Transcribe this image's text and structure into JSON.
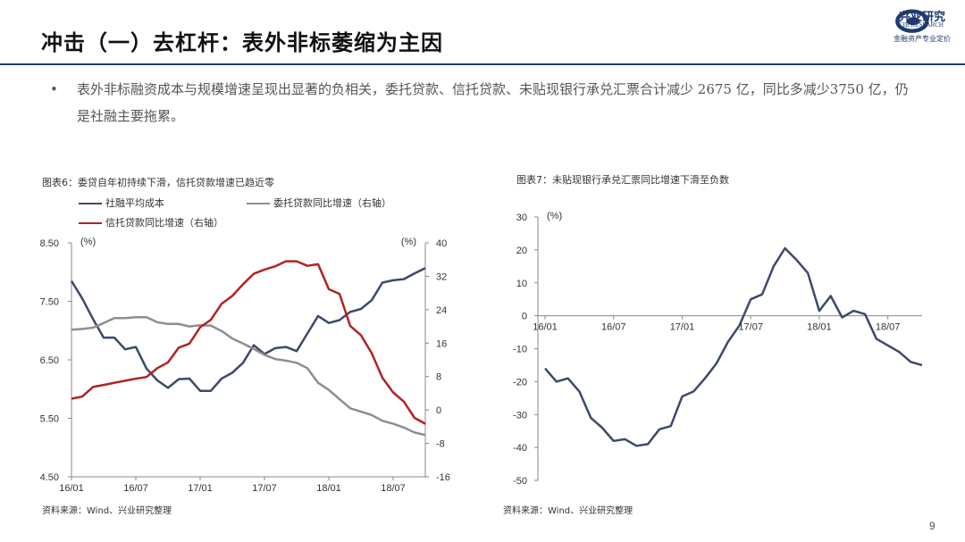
{
  "header": {
    "title": "冲击（一）去杠杆：表外非标萎缩为主因",
    "logo_text": "兴业研究",
    "logo_sub": "CIB RESEARCH",
    "logo_tag": "金融资产专业定价"
  },
  "bullet": {
    "dot": "•",
    "text": "表外非标融资成本与规模增速呈现出显著的负相关，委托贷款、信托贷款、未贴现银行承兑汇票合计减少 2675 亿，同比多减少3750 亿，仍是社融主要拖累。"
  },
  "page_number": "9",
  "colors": {
    "navy": "#3c4a6b",
    "gray": "#8e8e8e",
    "red": "#b22222",
    "rule": "#1f3a6e"
  },
  "chart_data": [
    {
      "type": "line",
      "title": "图表6：委贷自年初持续下滑，信托贷款增速已趋近零",
      "source": "资料来源：Wind、兴业研究整理",
      "x_ticks": [
        "16/01",
        "16/07",
        "17/01",
        "17/07",
        "18/01",
        "18/07"
      ],
      "left_axis": {
        "unit": "(%)",
        "ylim": [
          4.5,
          8.5
        ],
        "ticks": [
          "8.50",
          "7.50",
          "6.50",
          "5.50",
          "4.50"
        ]
      },
      "right_axis": {
        "unit": "(%)",
        "ylim": [
          -16,
          40
        ],
        "ticks": [
          "40",
          "32",
          "24",
          "16",
          "8",
          "0",
          "-8",
          "-16"
        ]
      },
      "series": [
        {
          "name": "社融平均成本",
          "axis": "left",
          "color": "#3c4a6b",
          "values": [
            7.85,
            7.55,
            7.2,
            6.88,
            6.88,
            6.68,
            6.72,
            6.35,
            6.15,
            6.02,
            6.17,
            6.18,
            5.97,
            5.97,
            6.18,
            6.28,
            6.45,
            6.75,
            6.6,
            6.7,
            6.72,
            6.65,
            6.95,
            7.25,
            7.13,
            7.18,
            7.32,
            7.37,
            7.52,
            7.82,
            7.86,
            7.88,
            7.98,
            8.07
          ]
        },
        {
          "name": "委托贷款同比增速（右轴）",
          "axis": "right",
          "color": "#8e8e8e",
          "values": [
            19.2,
            19.4,
            19.7,
            20.8,
            22.0,
            22.0,
            22.2,
            22.2,
            21.0,
            20.6,
            20.6,
            20.0,
            20.3,
            20.2,
            18.9,
            17.1,
            15.9,
            14.6,
            13.2,
            12.2,
            11.8,
            11.3,
            10.0,
            6.5,
            4.8,
            2.6,
            0.4,
            -0.4,
            -1.2,
            -2.6,
            -3.3,
            -4.2,
            -5.4,
            -6.0
          ]
        },
        {
          "name": "信托贷款同比增速（右轴）",
          "axis": "right",
          "color": "#b22222",
          "values": [
            2.7,
            3.2,
            5.5,
            6.0,
            6.5,
            7.0,
            7.5,
            7.9,
            10.0,
            11.4,
            14.9,
            15.9,
            19.8,
            21.6,
            25.4,
            27.3,
            30.1,
            32.6,
            33.6,
            34.4,
            35.6,
            35.6,
            34.5,
            34.9,
            28.9,
            27.8,
            20.1,
            17.9,
            13.6,
            7.7,
            4.2,
            2.0,
            -1.9,
            -3.3
          ]
        }
      ]
    },
    {
      "type": "line",
      "title": "图表7：未贴现银行承兑汇票同比增速下滑至负数",
      "source": "资料来源：Wind、兴业研究整理",
      "x_ticks": [
        "16/01",
        "16/07",
        "17/01",
        "17/07",
        "18/01",
        "18/07"
      ],
      "y_axis": {
        "unit": "(%)",
        "ylim": [
          -50,
          30
        ],
        "ticks": [
          "30",
          "20",
          "10",
          "0",
          "-10",
          "-20",
          "-30",
          "-40",
          "-50"
        ]
      },
      "series": [
        {
          "name": "未贴现银行承兑汇票同比增速",
          "color": "#3c4a6b",
          "values": [
            -16,
            -20,
            -19,
            -23,
            -31,
            -34,
            -38,
            -37.5,
            -39.5,
            -39,
            -34.5,
            -33.5,
            -24.5,
            -23,
            -19,
            -14.5,
            -8,
            -3,
            5,
            6.5,
            15,
            20.5,
            17,
            13,
            1.5,
            6,
            -0.5,
            1.5,
            0.5,
            -7,
            -9,
            -11,
            -14,
            -15
          ]
        }
      ]
    }
  ]
}
